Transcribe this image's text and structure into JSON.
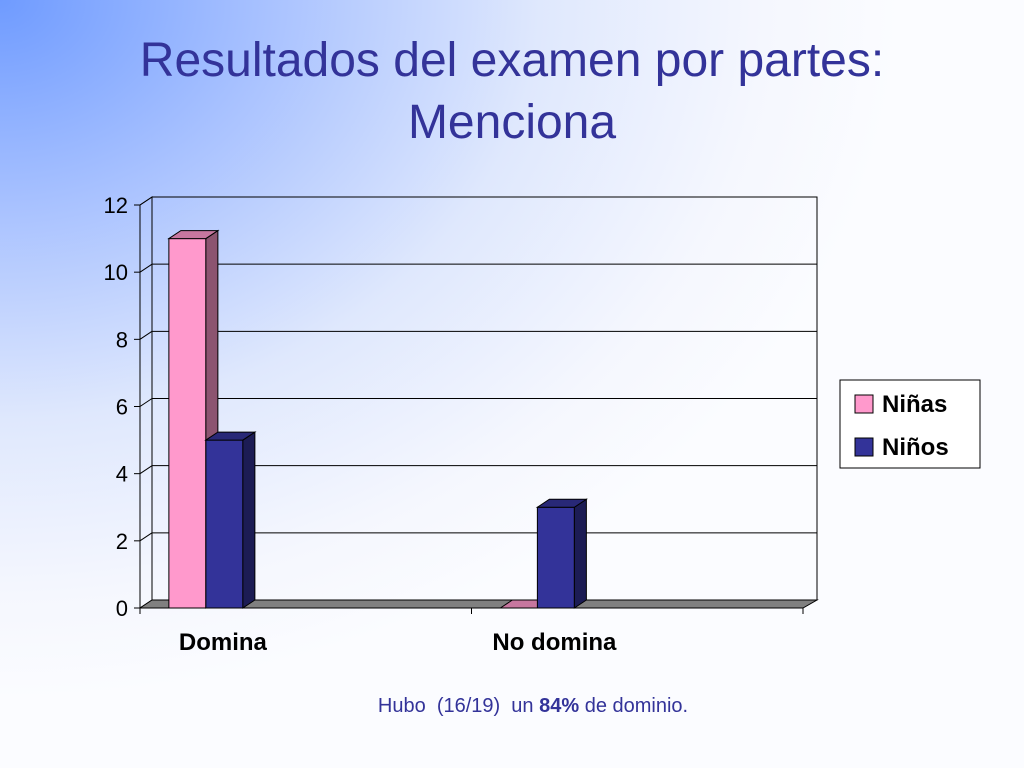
{
  "chart_data": {
    "type": "bar3d",
    "title": "Resultados del examen por partes: Menciona",
    "categories": [
      "Domina",
      "No domina"
    ],
    "series": [
      {
        "name": "Niñas",
        "color": "#ff99cc",
        "values": [
          11,
          0
        ]
      },
      {
        "name": "Niños",
        "color": "#333399",
        "values": [
          5,
          3
        ]
      }
    ],
    "ylim": [
      0,
      12
    ],
    "yticks": [
      0,
      2,
      4,
      6,
      8,
      10,
      12
    ],
    "grid": true,
    "legend": "right",
    "caption": [
      "Hubo  (16/19)  un ",
      "84%",
      " de dominio."
    ]
  }
}
